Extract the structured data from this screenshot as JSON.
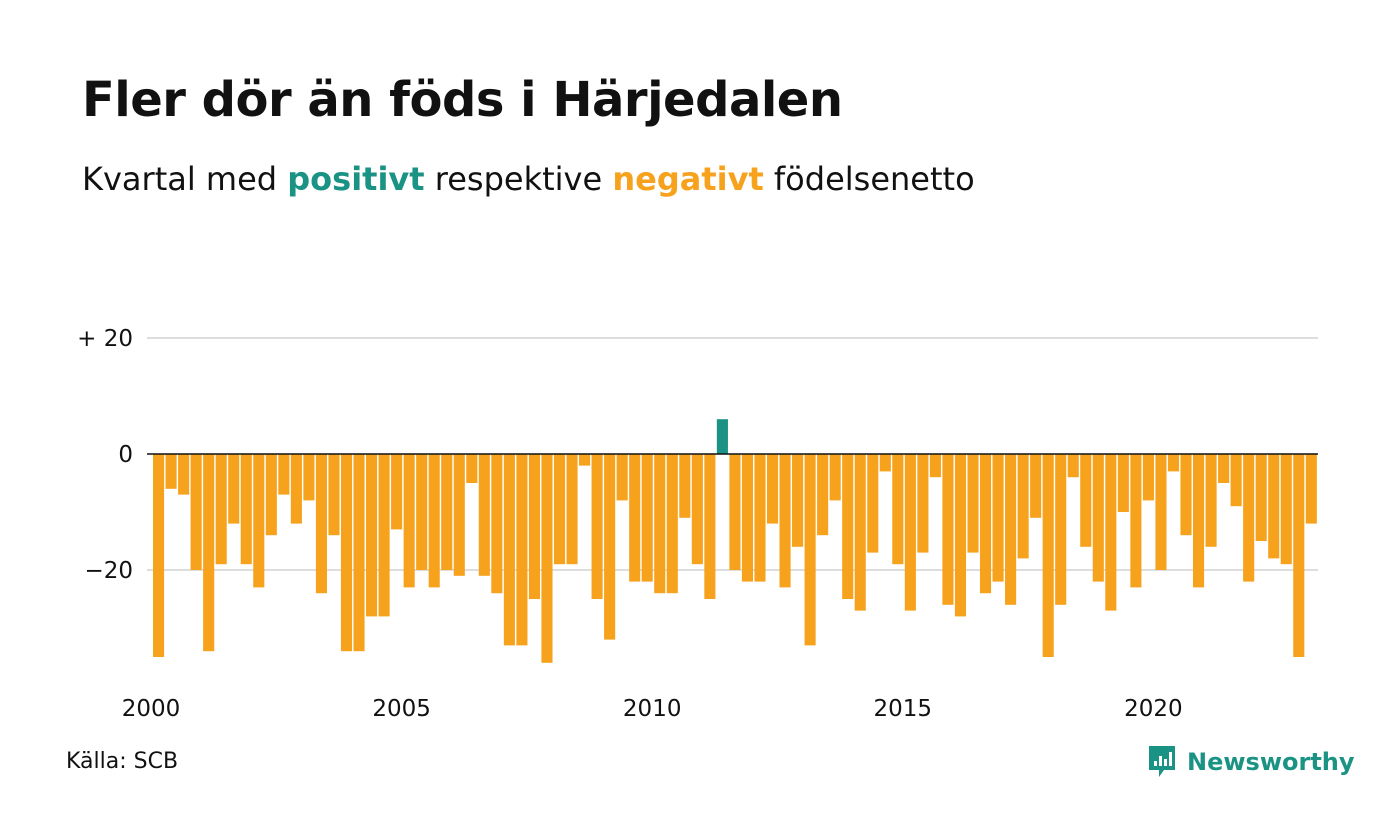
{
  "header": {
    "title": "Fler dör än föds i Härjedalen",
    "subtitle_before": "Kvartal med ",
    "subtitle_positive": "positivt",
    "subtitle_middle": " respektive ",
    "subtitle_negative": "negativt",
    "subtitle_after": " födelsenetto"
  },
  "footer": {
    "source": "Källa: SCB",
    "brand": "Newsworthy"
  },
  "colors": {
    "positive": "#1a9384",
    "negative": "#f7a21d",
    "grid": "#dddddd",
    "baseline": "#111111",
    "text": "#111111"
  },
  "icons": {
    "brand_logo": "bar-chart-speech-bubble-icon"
  },
  "chart_data": {
    "type": "bar",
    "title": "Fler dör än föds i Härjedalen",
    "xlabel": "",
    "ylabel": "",
    "ylim": [
      -38,
      24
    ],
    "y_ticks": [
      {
        "value": 20,
        "label": "+ 20"
      },
      {
        "value": 0,
        "label": "0"
      },
      {
        "value": -20,
        "label": "−20"
      }
    ],
    "x_ticks": [
      "2000",
      "2005",
      "2010",
      "2015",
      "2020"
    ],
    "x_start_year": 2000,
    "periods_per_year": 4,
    "grid": true,
    "values": [
      -35,
      -6,
      -7,
      -20,
      -34,
      -19,
      -12,
      -19,
      -23,
      -14,
      -7,
      -12,
      -8,
      -24,
      -14,
      -34,
      -34,
      -28,
      -28,
      -13,
      -23,
      -20,
      -23,
      -20,
      -21,
      -5,
      -21,
      -24,
      -33,
      -33,
      -25,
      -36,
      -19,
      -19,
      -2,
      -25,
      -32,
      -8,
      -22,
      -22,
      -24,
      -24,
      -11,
      -19,
      -25,
      6,
      -20,
      -22,
      -22,
      -12,
      -23,
      -16,
      -33,
      -14,
      -8,
      -25,
      -27,
      -17,
      -3,
      -19,
      -27,
      -17,
      -4,
      -26,
      -28,
      -17,
      -24,
      -22,
      -26,
      -18,
      -11,
      -35,
      -26,
      -4,
      -16,
      -22,
      -27,
      -10,
      -23,
      -8,
      -20,
      -3,
      -14,
      -23,
      -16,
      -5,
      -9,
      -22,
      -15,
      -18,
      -19,
      -35,
      -12
    ]
  }
}
